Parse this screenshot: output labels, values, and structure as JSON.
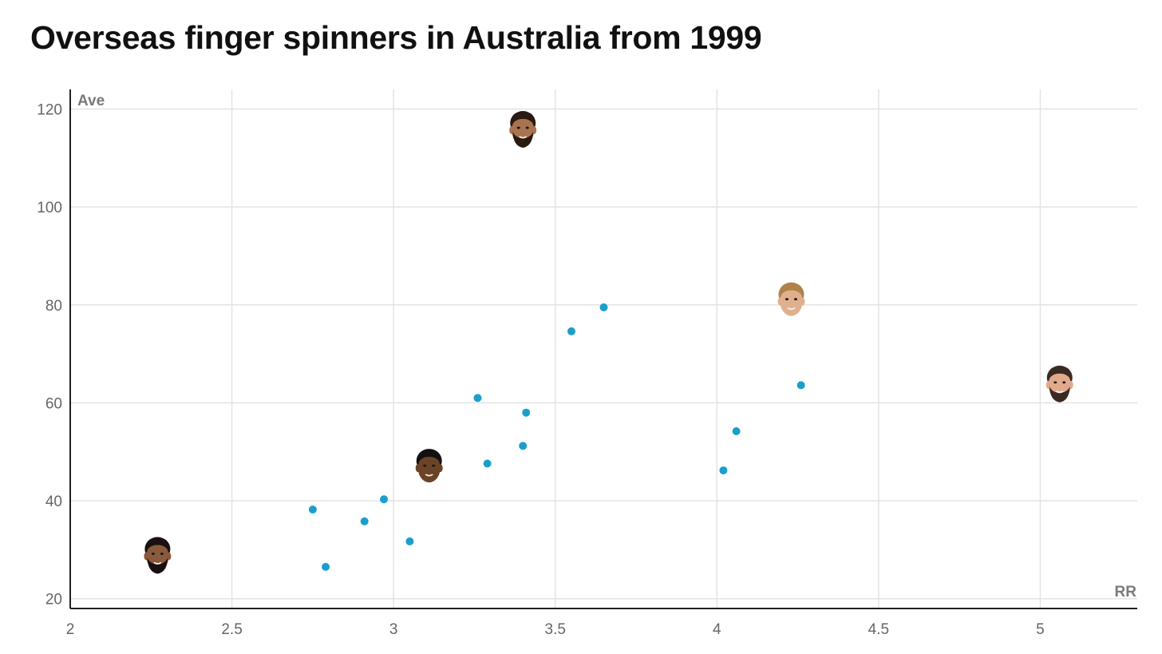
{
  "title": "Overseas finger spinners in Australia from 1999",
  "chart_data": {
    "type": "scatter",
    "title": "Overseas finger spinners in Australia from 1999",
    "xlabel": "RR",
    "ylabel": "Ave",
    "xlim": [
      2,
      5.3
    ],
    "ylim": [
      18,
      124
    ],
    "xticks": [
      "2",
      "2.5",
      "3",
      "3.5",
      "4",
      "4.5",
      "5"
    ],
    "yticks": [
      "20",
      "40",
      "60",
      "80",
      "100",
      "120"
    ],
    "grid": true,
    "point_color": "#1a9fcc",
    "series": [
      {
        "points": [
          {
            "x": 2.75,
            "y": 38.2
          },
          {
            "x": 2.79,
            "y": 26.5
          },
          {
            "x": 2.91,
            "y": 35.8
          },
          {
            "x": 2.97,
            "y": 40.3
          },
          {
            "x": 3.05,
            "y": 31.7
          },
          {
            "x": 3.26,
            "y": 61.0
          },
          {
            "x": 3.29,
            "y": 47.6
          },
          {
            "x": 3.4,
            "y": 51.2
          },
          {
            "x": 3.41,
            "y": 58.0
          },
          {
            "x": 3.55,
            "y": 74.6
          },
          {
            "x": 3.65,
            "y": 79.5
          },
          {
            "x": 4.02,
            "y": 46.2
          },
          {
            "x": 4.06,
            "y": 54.2
          },
          {
            "x": 4.26,
            "y": 63.6
          }
        ]
      }
    ],
    "highlighted_players": [
      {
        "x": 2.27,
        "y": 29.0,
        "icon": "player-face-icon",
        "skin": "#8a5a3c",
        "hair": "#1a1010",
        "beard": true
      },
      {
        "x": 3.11,
        "y": 47.0,
        "icon": "player-face-icon",
        "skin": "#6b4428",
        "hair": "#141010",
        "beard": false
      },
      {
        "x": 3.4,
        "y": 116.0,
        "icon": "player-face-icon",
        "skin": "#a8734f",
        "hair": "#2a1a12",
        "beard": true
      },
      {
        "x": 4.23,
        "y": 81.0,
        "icon": "player-face-icon",
        "skin": "#e0b08e",
        "hair": "#b0824a",
        "beard": false
      },
      {
        "x": 5.06,
        "y": 64.0,
        "icon": "player-face-icon",
        "skin": "#e2aa8c",
        "hair": "#3a2a22",
        "beard": true
      }
    ]
  }
}
